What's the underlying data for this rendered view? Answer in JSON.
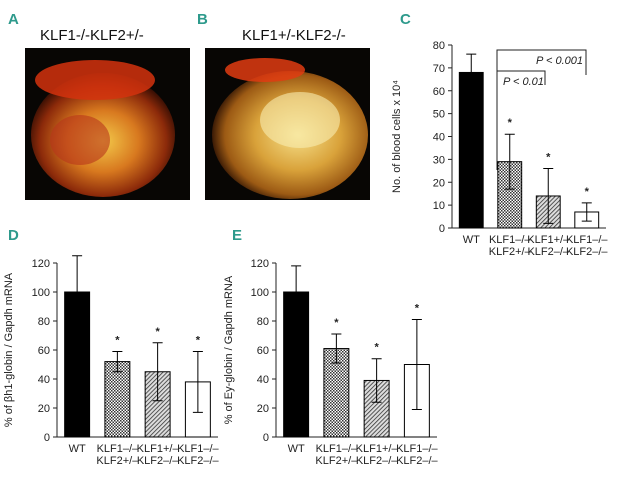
{
  "images": [
    {
      "panel": "A",
      "label": "KLF1-/-KLF2+/-"
    },
    {
      "panel": "B",
      "label": "KLF1+/-KLF2-/-"
    }
  ],
  "chart_data": [
    {
      "type": "bar",
      "panel": "C",
      "ylabel": "No. of blood cells x 10⁴",
      "categories": [
        [
          "WT"
        ],
        [
          "KLF1–/–",
          "KLF2+/–"
        ],
        [
          "KLF1+/–",
          "KLF2–/–"
        ],
        [
          "KLF1–/–",
          "KLF2–/–"
        ]
      ],
      "values": [
        68,
        29,
        14,
        7
      ],
      "errors": [
        8,
        12,
        12,
        4
      ],
      "significance": [
        null,
        "*",
        "*",
        "*"
      ],
      "fills": [
        "black",
        "checker",
        "hatch",
        "white"
      ],
      "annotations": [
        "P < 0.01",
        "P < 0.001"
      ],
      "ylim": [
        0,
        80
      ],
      "yticks": [
        0,
        10,
        20,
        30,
        40,
        50,
        60,
        70,
        80
      ]
    },
    {
      "type": "bar",
      "panel": "D",
      "ylabel": "% of βh1-globin / Gapdh mRNA",
      "categories": [
        [
          "WT"
        ],
        [
          "KLF1–/–",
          "KLF2+/–"
        ],
        [
          "KLF1+/–",
          "KLF2–/–"
        ],
        [
          "KLF1–/–",
          "KLF2–/–"
        ]
      ],
      "values": [
        100,
        52,
        45,
        38
      ],
      "errors": [
        25,
        7,
        20,
        21
      ],
      "significance": [
        null,
        "*",
        "*",
        "*"
      ],
      "fills": [
        "black",
        "checker",
        "hatch",
        "white"
      ],
      "ylim": [
        0,
        120
      ],
      "yticks": [
        0,
        20,
        40,
        60,
        80,
        100,
        120
      ]
    },
    {
      "type": "bar",
      "panel": "E",
      "ylabel": "% of Ey-globin / Gapdh mRNA",
      "categories": [
        [
          "WT"
        ],
        [
          "KLF1–/–",
          "KLF2+/–"
        ],
        [
          "KLF1+/–",
          "KLF2–/–"
        ],
        [
          "KLF1–/–",
          "KLF2–/–"
        ]
      ],
      "values": [
        100,
        61,
        39,
        50
      ],
      "errors": [
        18,
        10,
        15,
        31
      ],
      "significance": [
        null,
        "*",
        "*",
        "*"
      ],
      "fills": [
        "black",
        "checker",
        "hatch",
        "white"
      ],
      "ylim": [
        0,
        120
      ],
      "yticks": [
        0,
        20,
        40,
        60,
        80,
        100,
        120
      ]
    }
  ]
}
